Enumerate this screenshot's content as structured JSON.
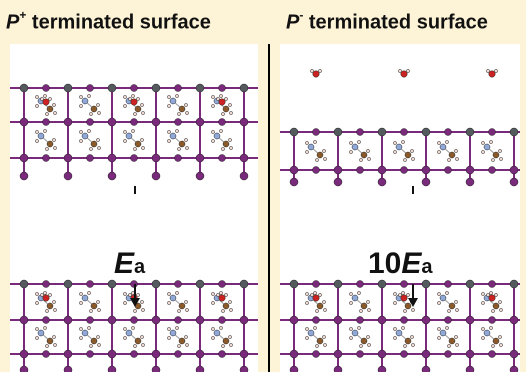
{
  "panels": [
    {
      "title_symbol": "P",
      "title_charge": "+",
      "title_rest": " terminated surface",
      "energy_coefficient": "",
      "energy_symbol": "E",
      "energy_subscript": "a"
    },
    {
      "title_symbol": "P",
      "title_charge": "-",
      "title_rest": " terminated surface",
      "energy_coefficient": "10",
      "energy_symbol": "E",
      "energy_subscript": "a"
    }
  ],
  "colors": {
    "background": "#fdf3d6",
    "iodine": "#7a2a7a",
    "lead": "#555a5f",
    "oxygen": "#cc2222",
    "carbon": "#8b5a2b",
    "nitrogen": "#8fa8d8",
    "hydrogen": "#f0d8d0",
    "bond": "#7a2a7a"
  }
}
